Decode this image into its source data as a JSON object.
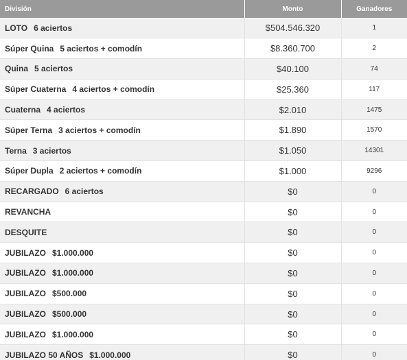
{
  "table": {
    "headers": {
      "division": "División",
      "monto": "Monto",
      "ganadores": "Ganadores"
    },
    "rows": [
      {
        "name": "LOTO",
        "detail": "6 aciertos",
        "monto": "$504.546.320",
        "ganadores": "1"
      },
      {
        "name": "Súper Quina",
        "detail": "5 aciertos + comodín",
        "monto": "$8.360.700",
        "ganadores": "2"
      },
      {
        "name": "Quina",
        "detail": "5 aciertos",
        "monto": "$40.100",
        "ganadores": "74"
      },
      {
        "name": "Súper Cuaterna",
        "detail": "4 aciertos + comodín",
        "monto": "$25.360",
        "ganadores": "117"
      },
      {
        "name": "Cuaterna",
        "detail": "4 aciertos",
        "monto": "$2.010",
        "ganadores": "1475"
      },
      {
        "name": "Súper Terna",
        "detail": "3 aciertos + comodín",
        "monto": "$1.890",
        "ganadores": "1570"
      },
      {
        "name": "Terna",
        "detail": "3 aciertos",
        "monto": "$1.050",
        "ganadores": "14301"
      },
      {
        "name": "Súper Dupla",
        "detail": "2 aciertos + comodín",
        "monto": "$1.000",
        "ganadores": "9296"
      },
      {
        "name": "RECARGADO",
        "detail": "6 aciertos",
        "monto": "$0",
        "ganadores": "0"
      },
      {
        "name": "REVANCHA",
        "detail": "",
        "monto": "$0",
        "ganadores": "0"
      },
      {
        "name": "DESQUITE",
        "detail": "",
        "monto": "$0",
        "ganadores": "0"
      },
      {
        "name": "JUBILAZO",
        "detail": "$1.000.000",
        "monto": "$0",
        "ganadores": "0"
      },
      {
        "name": "JUBILAZO",
        "detail": "$1.000.000",
        "monto": "$0",
        "ganadores": "0"
      },
      {
        "name": "JUBILAZO",
        "detail": "$500.000",
        "monto": "$0",
        "ganadores": "0"
      },
      {
        "name": "JUBILAZO",
        "detail": "$500.000",
        "monto": "$0",
        "ganadores": "0"
      },
      {
        "name": "JUBILAZO",
        "detail": "$1.000.000",
        "monto": "$0",
        "ganadores": "0"
      },
      {
        "name": "JUBILAZO 50 AÑOS",
        "detail": "$1.000.000",
        "monto": "$0",
        "ganadores": "0"
      }
    ]
  },
  "colors": {
    "header_bg": "#9a9a9a",
    "row_stripe": "#f0f0f0",
    "text": "#333333"
  }
}
